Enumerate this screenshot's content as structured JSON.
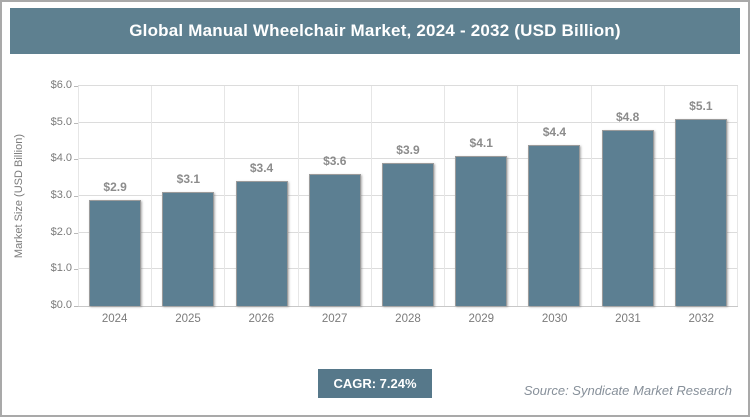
{
  "header": {
    "title": "Global Manual Wheelchair Market, 2024 - 2032 (USD Billion)"
  },
  "chart_data": {
    "type": "bar",
    "title": "Global Manual Wheelchair Market, 2024 - 2032 (USD Billion)",
    "categories": [
      "2024",
      "2025",
      "2026",
      "2027",
      "2028",
      "2029",
      "2030",
      "2031",
      "2032"
    ],
    "values": [
      2.9,
      3.1,
      3.4,
      3.6,
      3.9,
      4.1,
      4.4,
      4.8,
      5.1
    ],
    "value_labels": [
      "$2.9",
      "$3.1",
      "$3.4",
      "$3.6",
      "$3.9",
      "$4.1",
      "$4.4",
      "$4.8",
      "$5.1"
    ],
    "xlabel": "",
    "ylabel": "Market Size (USD Billion)",
    "ylim": [
      0,
      6
    ],
    "ytick_step": 1,
    "ytick_labels": [
      "$0.0",
      "$1.0",
      "$2.0",
      "$3.0",
      "$4.0",
      "$5.0",
      "$6.0"
    ],
    "grid": true,
    "legend": "none"
  },
  "footer": {
    "cagr_label": "CAGR: 7.24%",
    "source": "Source: Syndicate Market Research"
  },
  "colors": {
    "header_bg": "#5E8090",
    "bar_fill": "#5C7F92",
    "bar_outline": "#A6A6A6",
    "grid": "#DCDCDC",
    "axis_text": "#7B7B7B",
    "value_label": "#8C8C8C",
    "badge_bg": "#56788A",
    "source_text": "#87909A"
  }
}
